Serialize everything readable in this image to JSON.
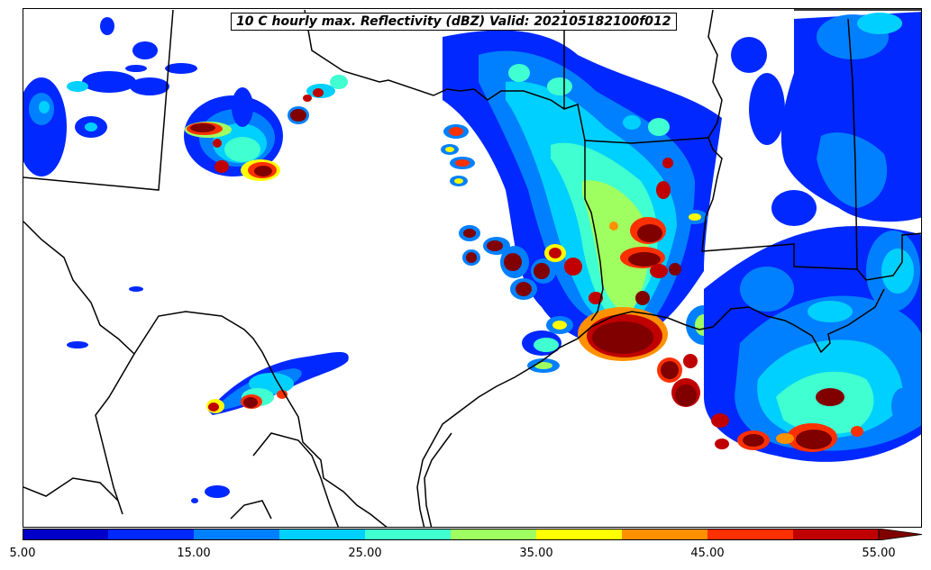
{
  "map": {
    "title": "10 C hourly max. Reflectivity (dBZ) Valid: 202105182100f012",
    "variable": "hourly max reflectivity",
    "units": "dBZ",
    "region": "Texas / Louisiana / Gulf Coast"
  },
  "colorbar": {
    "min": 5,
    "max": 55,
    "extend": "max",
    "levels": [
      5,
      10,
      15,
      20,
      25,
      30,
      35,
      40,
      45,
      50,
      55
    ],
    "colors": [
      "#0000c8",
      "#0028ff",
      "#0080ff",
      "#00d0ff",
      "#40ffd0",
      "#a0ff60",
      "#ffff00",
      "#ff9000",
      "#ff3000",
      "#c00000",
      "#800000"
    ],
    "tick_labels": [
      "5.00",
      "15.00",
      "25.00",
      "35.00",
      "45.00",
      "55.00"
    ]
  },
  "colors": {
    "lo": "#0000c8",
    "blue": "#0028ff",
    "mid": "#0080ff",
    "cyan": "#00d0ff",
    "teal": "#40ffd0",
    "green": "#a0ff60",
    "yellow": "#ffff00",
    "orange": "#ff9000",
    "red": "#ff3000",
    "dred": "#c00000",
    "maroon": "#800000"
  }
}
